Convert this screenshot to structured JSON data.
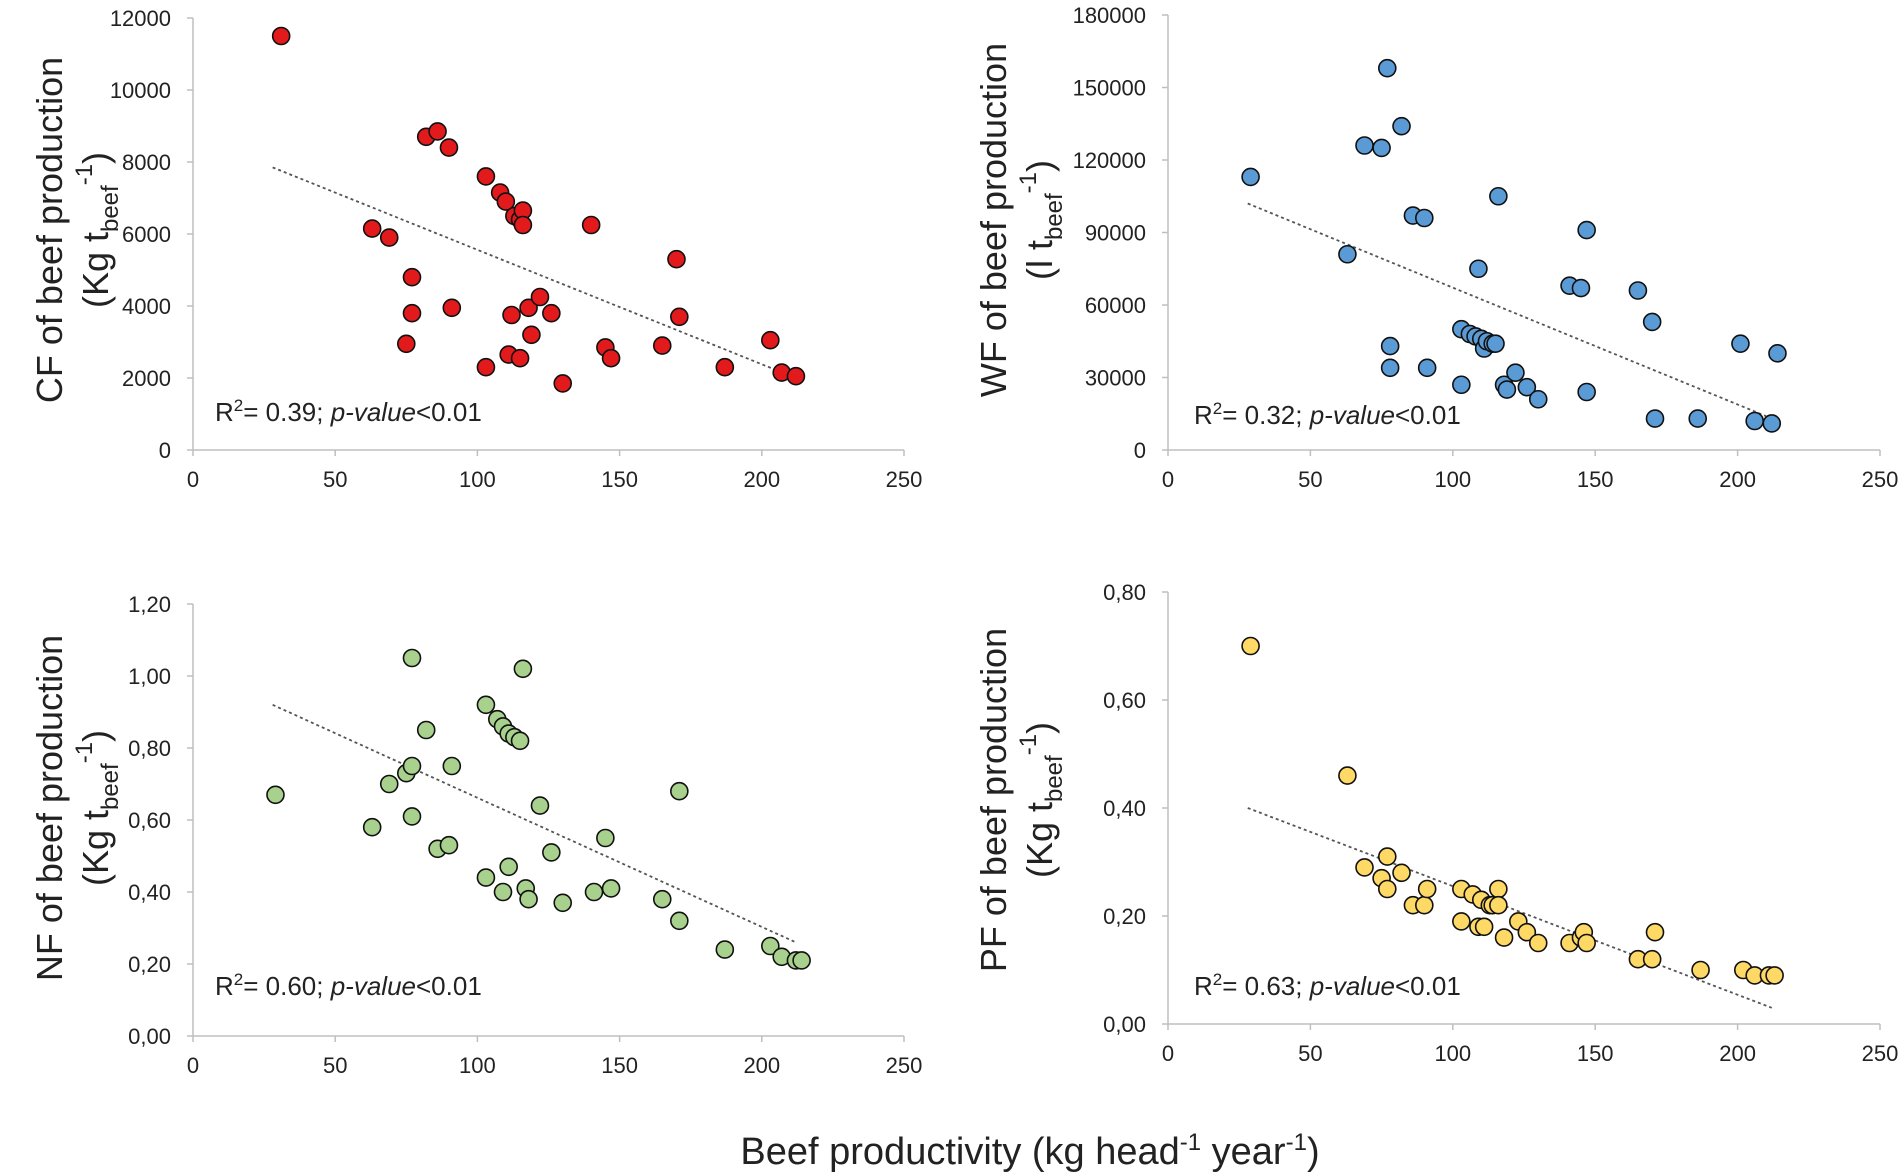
{
  "x_title": {
    "main": "Beef productivity (kg head",
    "sup1": "-1",
    "mid": " year",
    "sup2": "-1",
    "end": ")"
  },
  "chart_data": [
    {
      "type": "scatter",
      "id": "cf",
      "ylabel_line1": "CF of beef production",
      "ylabel_line2": {
        "pre": "(Kg t",
        "sub": "beef",
        "sup": "-1",
        "post": ")"
      },
      "annotation": {
        "r_label": "R",
        "r_sup": "2",
        "r_value": "= 0.39; ",
        "p_label": "p-value",
        "p_value": "<0.01"
      },
      "xlim": [
        0,
        250
      ],
      "ylim": [
        0,
        12000
      ],
      "xticks": [
        0,
        50,
        100,
        150,
        200,
        250
      ],
      "xtick_labels": [
        "0",
        "50",
        "100",
        "150",
        "200",
        "250"
      ],
      "yticks": [
        0,
        2000,
        4000,
        6000,
        8000,
        10000,
        12000
      ],
      "ytick_labels": [
        "0",
        "2000",
        "4000",
        "6000",
        "8000",
        "10000",
        "12000"
      ],
      "color": "#e31a1c",
      "trendline": {
        "x": [
          28,
          212
        ],
        "y": [
          7850,
          2000
        ]
      },
      "points": [
        [
          31,
          11500
        ],
        [
          63,
          6150
        ],
        [
          69,
          5900
        ],
        [
          75,
          2950
        ],
        [
          77,
          3800
        ],
        [
          77,
          4800
        ],
        [
          82,
          8700
        ],
        [
          86,
          8850
        ],
        [
          90,
          8400
        ],
        [
          91,
          3950
        ],
        [
          103,
          2300
        ],
        [
          103,
          7600
        ],
        [
          108,
          7150
        ],
        [
          110,
          6900
        ],
        [
          111,
          2650
        ],
        [
          112,
          3750
        ],
        [
          113,
          6500
        ],
        [
          115,
          2550
        ],
        [
          115,
          6400
        ],
        [
          116,
          6650
        ],
        [
          116,
          6250
        ],
        [
          118,
          3950
        ],
        [
          119,
          3200
        ],
        [
          122,
          4250
        ],
        [
          126,
          3800
        ],
        [
          130,
          1850
        ],
        [
          140,
          6250
        ],
        [
          145,
          2850
        ],
        [
          147,
          2550
        ],
        [
          165,
          2900
        ],
        [
          170,
          5300
        ],
        [
          171,
          3700
        ],
        [
          187,
          2300
        ],
        [
          203,
          3050
        ],
        [
          207,
          2150
        ],
        [
          212,
          2050
        ]
      ]
    },
    {
      "type": "scatter",
      "id": "wf",
      "ylabel_line1": "WF of beef production",
      "ylabel_line2": {
        "pre": "(l t",
        "sub": "beef",
        "sup": "-1",
        "post": ")"
      },
      "annotation": {
        "r_label": "R",
        "r_sup": "2",
        "r_value": "= 0.32; ",
        "p_label": "p-value",
        "p_value": "<0.01"
      },
      "xlim": [
        0,
        250
      ],
      "ylim": [
        0,
        180000
      ],
      "xticks": [
        0,
        50,
        100,
        150,
        200,
        250
      ],
      "xtick_labels": [
        "0",
        "50",
        "100",
        "150",
        "200",
        "250"
      ],
      "yticks": [
        0,
        30000,
        60000,
        90000,
        120000,
        150000,
        180000
      ],
      "ytick_labels": [
        "0",
        "30000",
        "60000",
        "90000",
        "120000",
        "150000",
        "180000"
      ],
      "color": "#5b9bd5",
      "trendline": {
        "x": [
          28,
          210
        ],
        "y": [
          102000,
          14000
        ]
      },
      "points": [
        [
          29,
          113000
        ],
        [
          63,
          81000
        ],
        [
          69,
          126000
        ],
        [
          75,
          125000
        ],
        [
          77,
          158000
        ],
        [
          78,
          34000
        ],
        [
          78,
          43000
        ],
        [
          82,
          134000
        ],
        [
          86,
          97000
        ],
        [
          90,
          96000
        ],
        [
          91,
          34000
        ],
        [
          103,
          50000
        ],
        [
          103,
          27000
        ],
        [
          106,
          48000
        ],
        [
          108,
          47000
        ],
        [
          109,
          75000
        ],
        [
          110,
          46000
        ],
        [
          111,
          42000
        ],
        [
          112,
          45000
        ],
        [
          114,
          44000
        ],
        [
          115,
          44000
        ],
        [
          116,
          105000
        ],
        [
          118,
          27000
        ],
        [
          119,
          25000
        ],
        [
          122,
          32000
        ],
        [
          126,
          26000
        ],
        [
          130,
          21000
        ],
        [
          141,
          68000
        ],
        [
          145,
          67000
        ],
        [
          147,
          91000
        ],
        [
          147,
          24000
        ],
        [
          165,
          66000
        ],
        [
          170,
          53000
        ],
        [
          171,
          13000
        ],
        [
          186,
          13000
        ],
        [
          201,
          44000
        ],
        [
          206,
          12000
        ],
        [
          212,
          11000
        ],
        [
          214,
          40000
        ]
      ]
    },
    {
      "type": "scatter",
      "id": "nf",
      "ylabel_line1": "NF of beef production",
      "ylabel_line2": {
        "pre": "(Kg t",
        "sub": "beef",
        "sup": "-1",
        "post": ")"
      },
      "annotation": {
        "r_label": "R",
        "r_sup": "2",
        "r_value": "= 0.60; ",
        "p_label": "p-value",
        "p_value": "<0.01"
      },
      "xlim": [
        0,
        250
      ],
      "ylim": [
        0,
        1.2
      ],
      "xticks": [
        0,
        50,
        100,
        150,
        200,
        250
      ],
      "xtick_labels": [
        "0",
        "50",
        "100",
        "150",
        "200",
        "250"
      ],
      "yticks": [
        0,
        0.2,
        0.4,
        0.6,
        0.8,
        1.0,
        1.2
      ],
      "ytick_labels": [
        "0,00",
        "0,20",
        "0,40",
        "0,60",
        "0,80",
        "1,00",
        "1,20"
      ],
      "color": "#a9d18e",
      "trendline": {
        "x": [
          28,
          212
        ],
        "y": [
          0.92,
          0.26
        ]
      },
      "points": [
        [
          29,
          0.67
        ],
        [
          63,
          0.58
        ],
        [
          69,
          0.7
        ],
        [
          75,
          0.73
        ],
        [
          77,
          1.05
        ],
        [
          77,
          0.75
        ],
        [
          77,
          0.61
        ],
        [
          82,
          0.85
        ],
        [
          86,
          0.52
        ],
        [
          90,
          0.53
        ],
        [
          91,
          0.75
        ],
        [
          103,
          0.92
        ],
        [
          103,
          0.44
        ],
        [
          107,
          0.88
        ],
        [
          109,
          0.86
        ],
        [
          109,
          0.4
        ],
        [
          111,
          0.84
        ],
        [
          111,
          0.47
        ],
        [
          113,
          0.83
        ],
        [
          115,
          0.82
        ],
        [
          116,
          1.02
        ],
        [
          117,
          0.41
        ],
        [
          118,
          0.38
        ],
        [
          122,
          0.64
        ],
        [
          126,
          0.51
        ],
        [
          130,
          0.37
        ],
        [
          141,
          0.4
        ],
        [
          145,
          0.55
        ],
        [
          147,
          0.41
        ],
        [
          165,
          0.38
        ],
        [
          171,
          0.32
        ],
        [
          171,
          0.68
        ],
        [
          187,
          0.24
        ],
        [
          203,
          0.25
        ],
        [
          207,
          0.22
        ],
        [
          212,
          0.21
        ],
        [
          214,
          0.21
        ]
      ]
    },
    {
      "type": "scatter",
      "id": "pf",
      "ylabel_line1": "PF of beef production",
      "ylabel_line2": {
        "pre": "(Kg t",
        "sub": "beef",
        "sup": "-1",
        "post": ")"
      },
      "annotation": {
        "r_label": "R",
        "r_sup": "2",
        "r_value": "= 0.63; ",
        "p_label": "p-value",
        "p_value": "<0.01"
      },
      "xlim": [
        0,
        250
      ],
      "ylim": [
        0,
        0.8
      ],
      "xticks": [
        0,
        50,
        100,
        150,
        200,
        250
      ],
      "xtick_labels": [
        "0",
        "50",
        "100",
        "150",
        "200",
        "250"
      ],
      "yticks": [
        0,
        0.2,
        0.4,
        0.6,
        0.8
      ],
      "ytick_labels": [
        "0,00",
        "0,20",
        "0,40",
        "0,60",
        "0,80"
      ],
      "color": "#ffd966",
      "trendline": {
        "x": [
          28,
          212
        ],
        "y": [
          0.4,
          0.03
        ]
      },
      "points": [
        [
          29,
          0.7
        ],
        [
          63,
          0.46
        ],
        [
          69,
          0.29
        ],
        [
          75,
          0.27
        ],
        [
          77,
          0.31
        ],
        [
          77,
          0.25
        ],
        [
          82,
          0.28
        ],
        [
          86,
          0.22
        ],
        [
          90,
          0.22
        ],
        [
          91,
          0.25
        ],
        [
          103,
          0.25
        ],
        [
          103,
          0.19
        ],
        [
          107,
          0.24
        ],
        [
          109,
          0.18
        ],
        [
          110,
          0.23
        ],
        [
          111,
          0.18
        ],
        [
          113,
          0.22
        ],
        [
          114,
          0.22
        ],
        [
          116,
          0.25
        ],
        [
          116,
          0.22
        ],
        [
          118,
          0.16
        ],
        [
          123,
          0.19
        ],
        [
          126,
          0.17
        ],
        [
          130,
          0.15
        ],
        [
          141,
          0.15
        ],
        [
          145,
          0.16
        ],
        [
          146,
          0.17
        ],
        [
          147,
          0.15
        ],
        [
          165,
          0.12
        ],
        [
          170,
          0.12
        ],
        [
          171,
          0.17
        ],
        [
          187,
          0.1
        ],
        [
          202,
          0.1
        ],
        [
          206,
          0.09
        ],
        [
          211,
          0.09
        ],
        [
          213,
          0.09
        ]
      ]
    }
  ]
}
